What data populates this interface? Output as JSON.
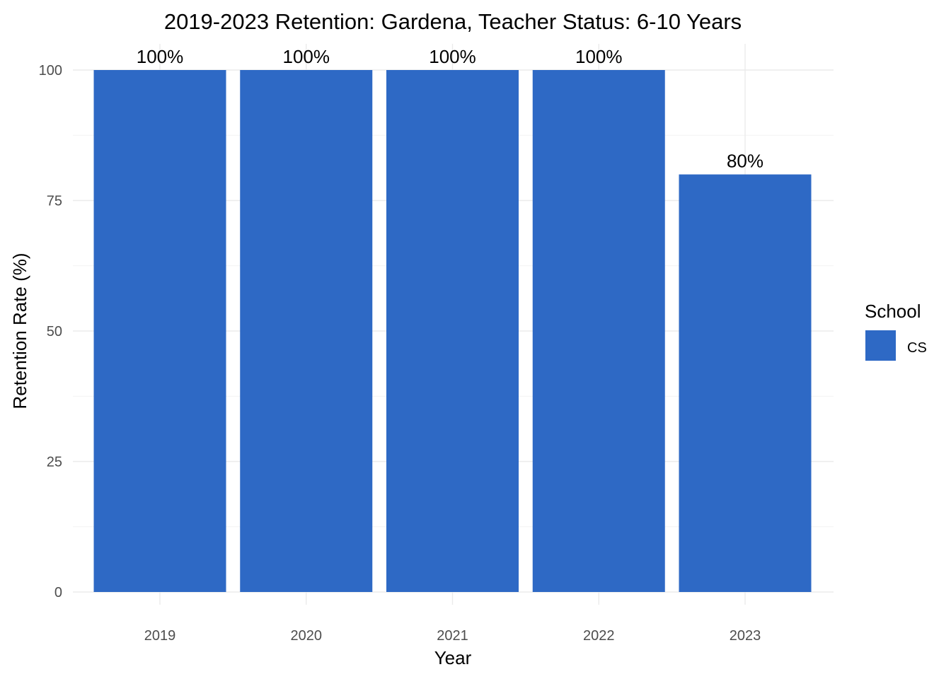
{
  "chart_data": {
    "type": "bar",
    "title": "2019-2023 Retention: Gardena, Teacher Status: 6-10 Years",
    "xlabel": "Year",
    "ylabel": "Retention Rate (%)",
    "categories": [
      "2019",
      "2020",
      "2021",
      "2022",
      "2023"
    ],
    "series": [
      {
        "name": "CS",
        "values": [
          100,
          100,
          100,
          100,
          80
        ],
        "labels": [
          "100%",
          "100%",
          "100%",
          "100%",
          "80%"
        ],
        "color": "#2e69c5"
      }
    ],
    "ylim": [
      0,
      100
    ],
    "yticks": [
      0,
      25,
      50,
      75,
      100
    ],
    "grid": true,
    "legend": {
      "title": "School",
      "placement": "right"
    }
  }
}
